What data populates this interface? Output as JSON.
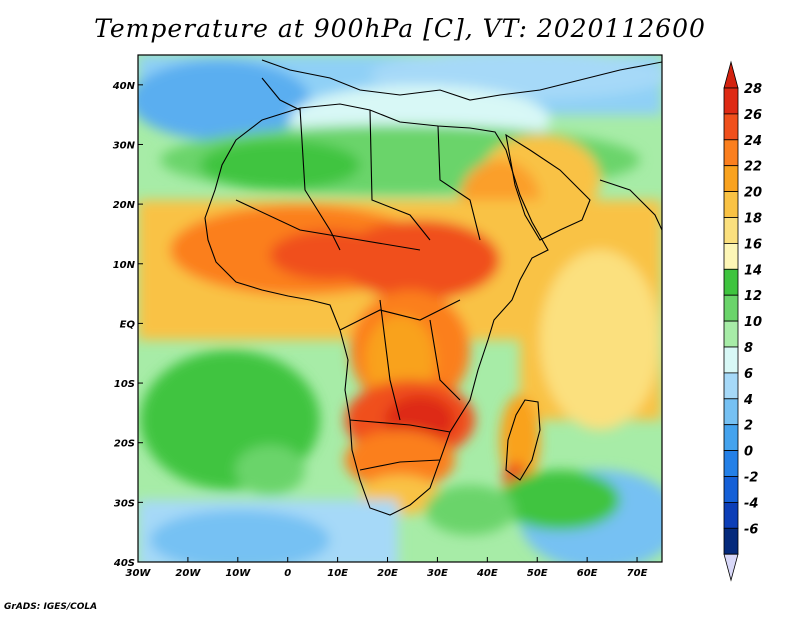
{
  "title": "Temperature at 900hPa [C], VT: 2020112600",
  "credit": "GrADS: IGES/COLA",
  "map": {
    "lon_range": [
      -30,
      75
    ],
    "lat_range": [
      -40,
      45
    ],
    "lon_ticks": [
      "30W",
      "20W",
      "10W",
      "0",
      "10E",
      "20E",
      "30E",
      "40E",
      "50E",
      "60E",
      "70E"
    ],
    "lat_ticks": [
      "40N",
      "30N",
      "20N",
      "10N",
      "EQ",
      "10S",
      "20S",
      "30S",
      "40S"
    ]
  },
  "colorbar": {
    "levels": [
      "28",
      "26",
      "24",
      "22",
      "20",
      "18",
      "16",
      "14",
      "12",
      "10",
      "8",
      "6",
      "4",
      "2",
      "0",
      "-2",
      "-4",
      "-6"
    ],
    "colors": [
      "#de2a14",
      "#f0501c",
      "#fb7f1e",
      "#f9a21e",
      "#f9c244",
      "#fbe07e",
      "#fdf6b6",
      "#3fc43f",
      "#6ad46a",
      "#a7eca7",
      "#d8f8f6",
      "#a6d9f8",
      "#76c1f3",
      "#44a3ee",
      "#2480e7",
      "#1560d7",
      "#0c3eb7",
      "#052a7c"
    ],
    "top_color": "#d3220f",
    "bottom_color": "#d8d8f8"
  }
}
